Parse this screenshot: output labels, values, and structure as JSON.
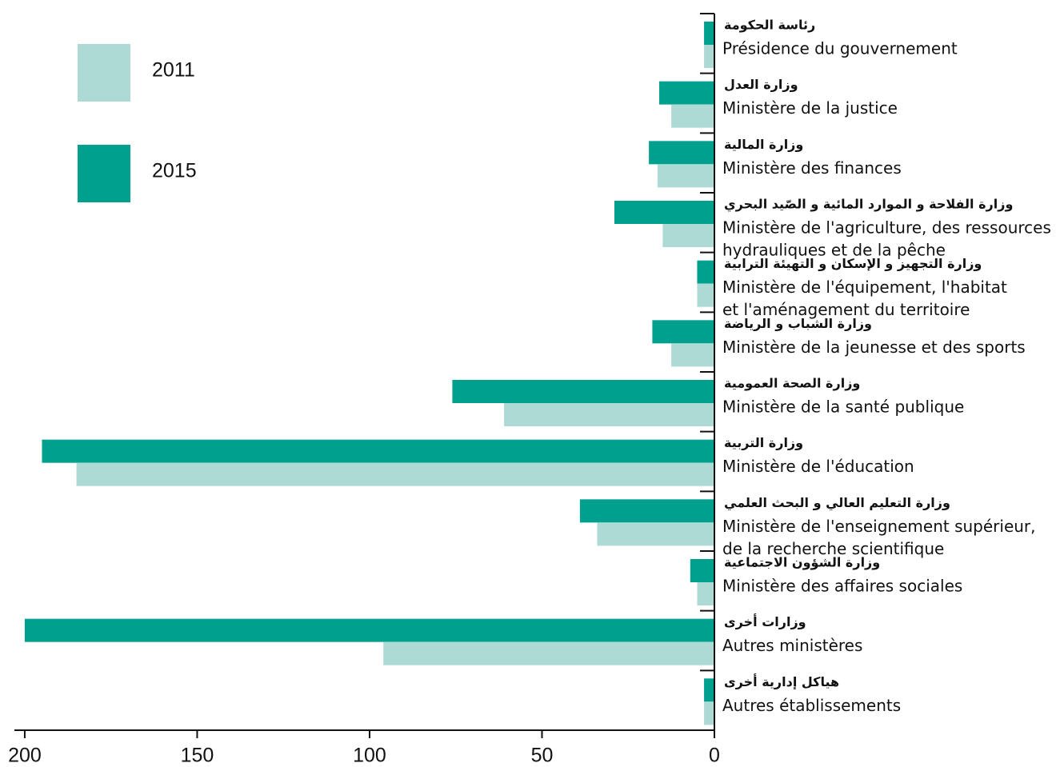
{
  "chart_data": {
    "type": "barh",
    "categories": [
      [
        "Présidence du gouvernement"
      ],
      [
        "Ministère de la justice"
      ],
      [
        "Ministère des finances"
      ],
      [
        "Ministère de l'agriculture, des ressources",
        "hydrauliques et de la pêche"
      ],
      [
        "Ministère de l'équipement, l'habitat",
        "et l'aménagement du territoire"
      ],
      [
        "Ministère de la jeunesse et des sports"
      ],
      [
        "Ministère de la santé publique"
      ],
      [
        "Ministère de l'éducation"
      ],
      [
        "Ministère de l'enseignement supérieur,",
        "de la recherche scientifique"
      ],
      [
        "Ministère des affaires sociales"
      ],
      [
        "Autres ministères"
      ],
      [
        "Autres établissements"
      ]
    ],
    "categories_ar": [
      "رئاسة الحكومة",
      "وزارة العدل",
      "وزارة المالية",
      "وزارة الفلاحة و الموارد المائية و الصّيد البحري",
      "وزارة التجهيز و الإسكان و التهيئة الترابية",
      "وزارة الشباب و الرياضة",
      "وزارة الصحة العمومية",
      "وزارة التربية",
      "وزارة التعليم العالي و البحث العلمي",
      "وزارة الشؤون الاجتماعية",
      "وزارات أخرى",
      "هياكل إدارية أخرى"
    ],
    "series": [
      {
        "name": "2015",
        "color": "#00a08e",
        "values": [
          3,
          16,
          19,
          29,
          5,
          18,
          76,
          195,
          39,
          7,
          200,
          3
        ]
      },
      {
        "name": "2011",
        "color": "#aedad6",
        "values": [
          3,
          12.5,
          16.5,
          15,
          5,
          12.5,
          61,
          185,
          34,
          5,
          96,
          3
        ]
      }
    ],
    "xlim": [
      0,
      203
    ],
    "xticks": [
      200,
      150,
      100,
      50,
      0
    ],
    "x_reversed": true
  }
}
